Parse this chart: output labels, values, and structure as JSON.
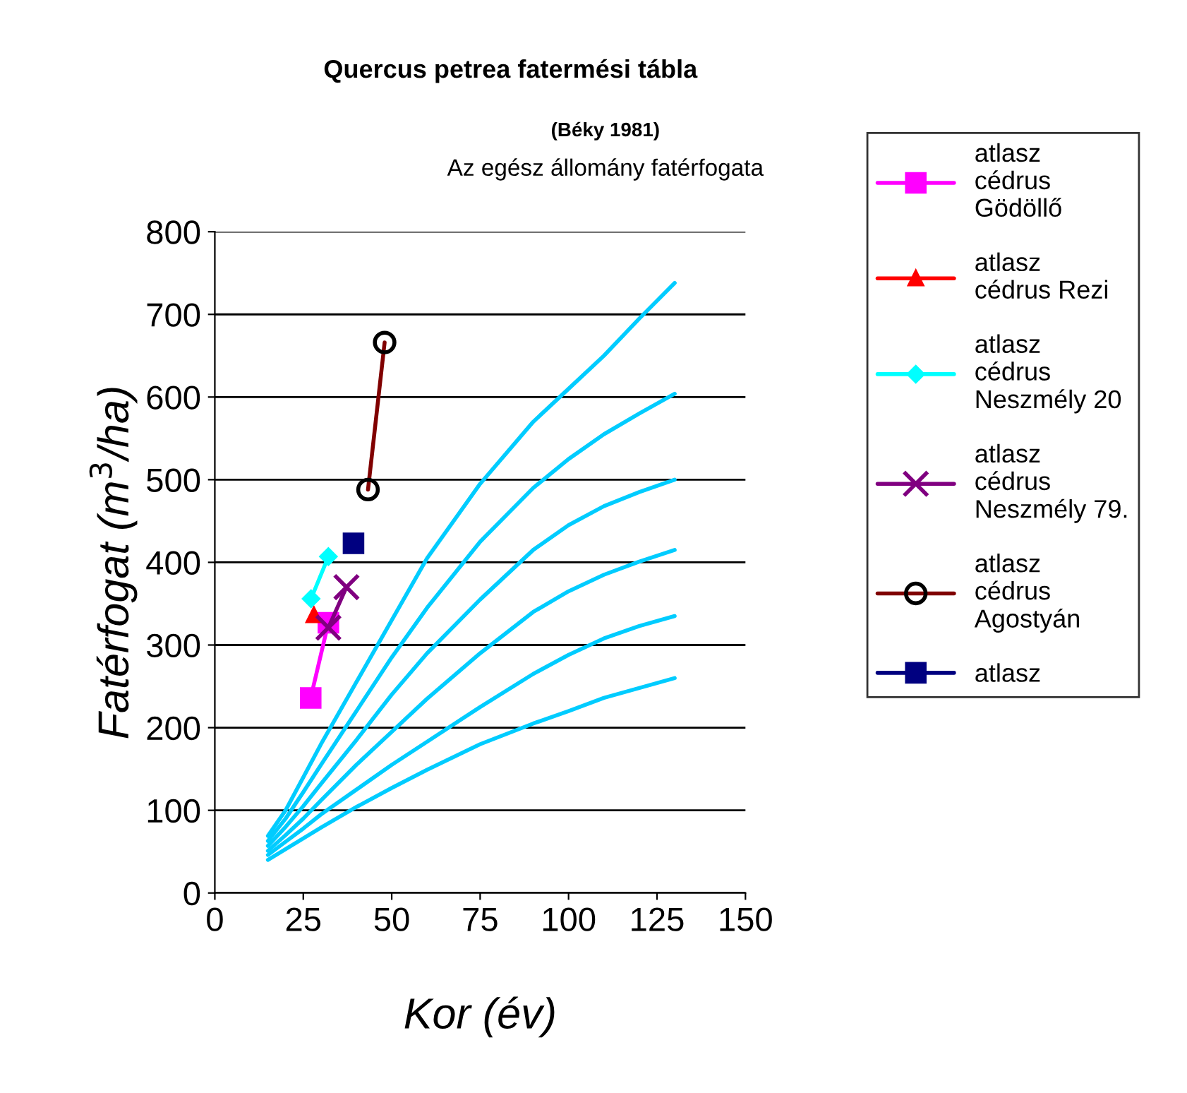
{
  "chart_data": {
    "type": "line",
    "title": "Quercus petrea fatermési tábla",
    "subtitle": "(Béky 1981)",
    "annotations": [
      "Az egész állomány fatérfogata"
    ],
    "xlabel": "Kor (év)",
    "ylabel": "Fatérfogat (m$^{3}$/ha)",
    "xlim": [
      0,
      150
    ],
    "xticks": [
      0,
      25,
      50,
      75,
      100,
      125,
      150
    ],
    "ylim": [
      0,
      800
    ],
    "yticks": [
      0,
      100,
      200,
      300,
      400,
      500,
      600,
      700,
      800
    ],
    "grid": "y",
    "legend": "right",
    "series": [
      {
        "name": "atlasz cédrus Gödöllő",
        "color": "#ff00ff",
        "marker": "square",
        "x": [
          27.1,
          32.1
        ],
        "values": [
          236,
          327
        ]
      },
      {
        "name": "atlasz cédrus Rezi",
        "color": "#ff0000",
        "marker": "triangle",
        "x": [
          28.0
        ],
        "values": [
          336
        ]
      },
      {
        "name": "atlasz cédrus Neszmély 20",
        "color": "#00ffff",
        "marker": "diamond",
        "x": [
          27.2,
          32.1
        ],
        "values": [
          356,
          407
        ]
      },
      {
        "name": "atlasz cédrus Neszmély 79.",
        "color": "#800080",
        "marker": "cross",
        "x": [
          32.1,
          37.2
        ],
        "values": [
          321,
          370
        ]
      },
      {
        "name": "atlasz cédrus Agostyán",
        "color": "#800000",
        "marker": "circle",
        "x": [
          43.3,
          48.0
        ],
        "values": [
          488,
          666
        ]
      },
      {
        "name": "atlasz",
        "color": "#000080",
        "marker": "square",
        "x": [
          39.2
        ],
        "values": [
          423
        ]
      },
      {
        "color": "#00ccff",
        "marker": "none",
        "x": [
          15,
          20,
          25,
          30,
          40,
          50,
          60,
          75,
          90,
          100,
          110,
          120,
          130
        ],
        "values": [
          69,
          100,
          140,
          180,
          255,
          330,
          405,
          495,
          570,
          610,
          650,
          695,
          738
        ]
      },
      {
        "color": "#00ccff",
        "marker": "none",
        "x": [
          15,
          20,
          25,
          30,
          40,
          50,
          60,
          75,
          90,
          100,
          110,
          120,
          130
        ],
        "values": [
          63,
          90,
          122,
          155,
          220,
          285,
          345,
          425,
          490,
          525,
          555,
          580,
          604
        ]
      },
      {
        "color": "#00ccff",
        "marker": "none",
        "x": [
          15,
          20,
          25,
          30,
          40,
          50,
          60,
          75,
          90,
          100,
          110,
          120,
          130
        ],
        "values": [
          57,
          80,
          105,
          132,
          185,
          240,
          290,
          355,
          415,
          445,
          468,
          485,
          500
        ]
      },
      {
        "color": "#00ccff",
        "marker": "none",
        "x": [
          15,
          20,
          25,
          30,
          40,
          50,
          60,
          75,
          90,
          100,
          110,
          120,
          130
        ],
        "values": [
          51,
          70,
          90,
          112,
          155,
          195,
          235,
          290,
          340,
          365,
          385,
          401,
          415
        ]
      },
      {
        "color": "#00ccff",
        "marker": "none",
        "x": [
          15,
          20,
          25,
          30,
          40,
          50,
          60,
          75,
          90,
          100,
          110,
          120,
          130
        ],
        "values": [
          46,
          62,
          78,
          95,
          125,
          155,
          183,
          225,
          265,
          288,
          308,
          323,
          335
        ]
      },
      {
        "color": "#00ccff",
        "marker": "none",
        "x": [
          15,
          20,
          25,
          30,
          40,
          50,
          60,
          75,
          90,
          100,
          110,
          120,
          130
        ],
        "values": [
          40,
          53,
          66,
          79,
          104,
          127,
          149,
          180,
          205,
          220,
          236,
          248,
          260
        ]
      }
    ]
  }
}
